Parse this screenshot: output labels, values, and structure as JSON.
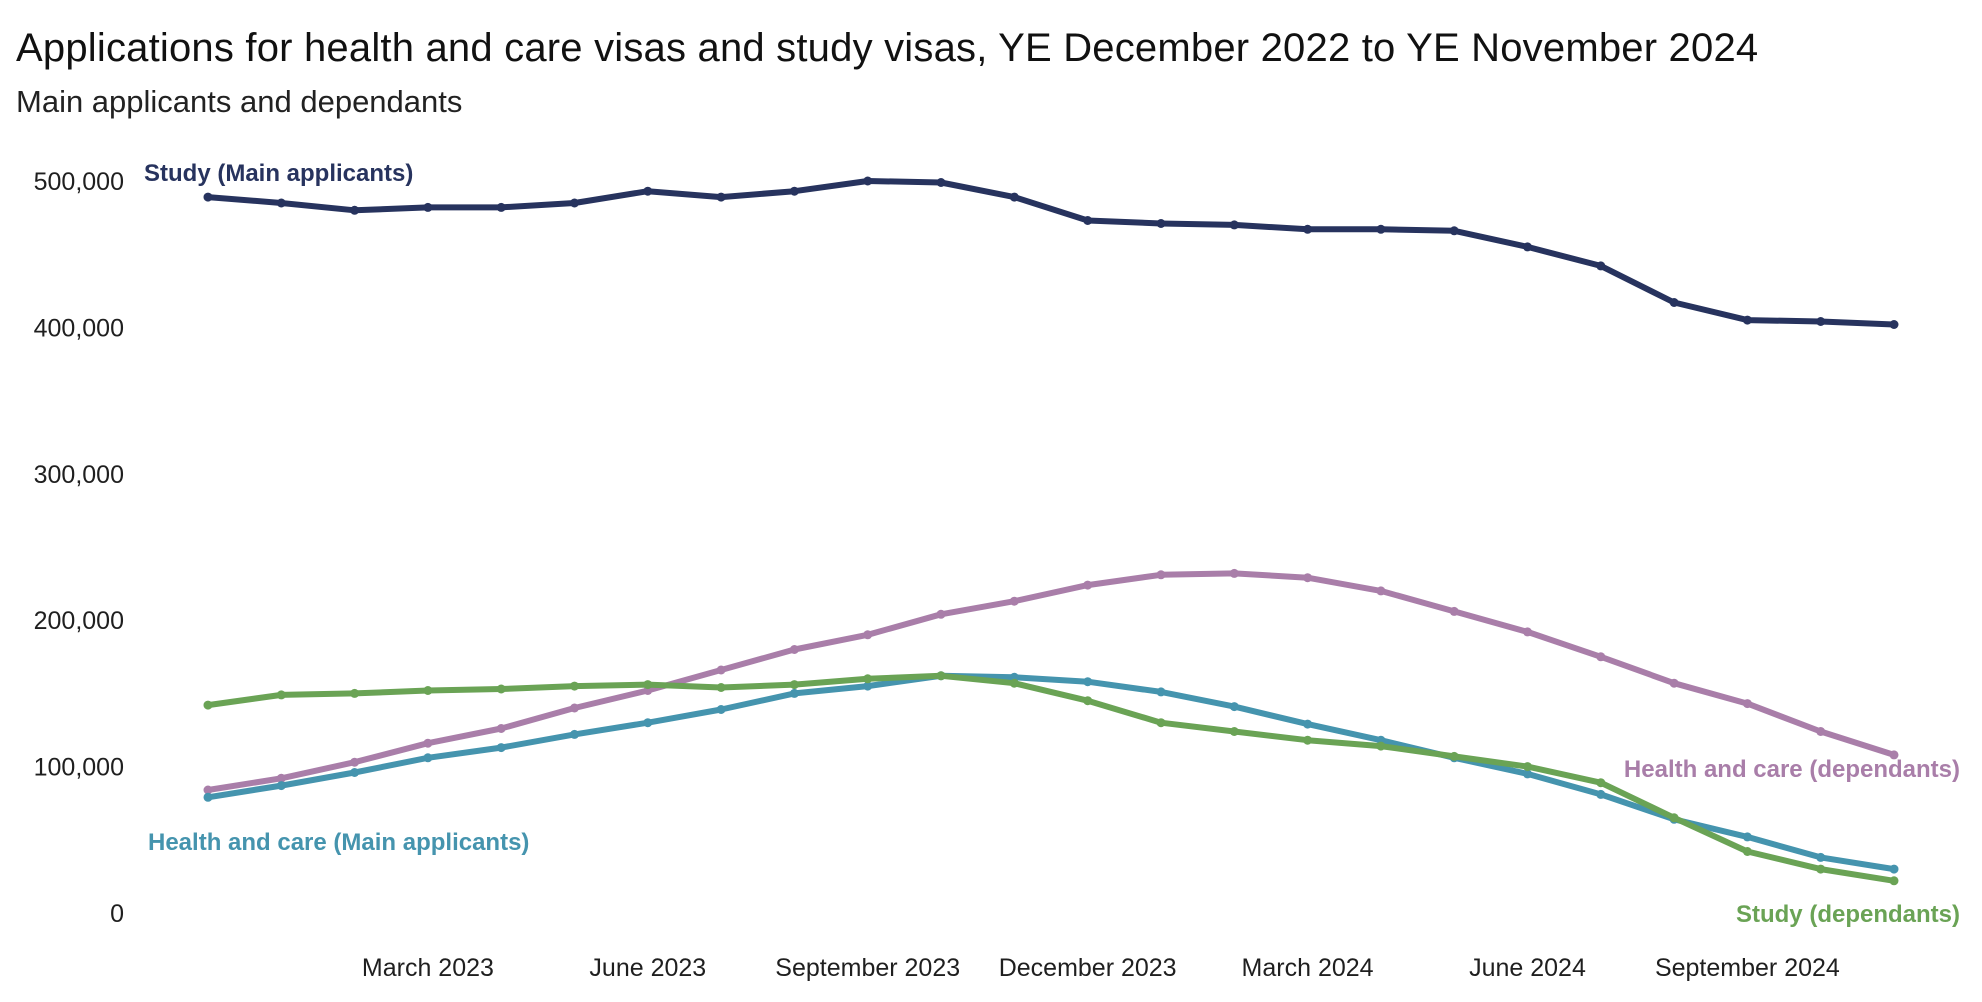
{
  "title": "Applications for health and care visas and study visas, YE December 2022 to YE November 2024",
  "subtitle": "Main applicants and dependants",
  "chart_data": {
    "type": "line",
    "title": "Applications for health and care visas and study visas, YE December 2022 to YE November 2024",
    "subtitle": "Main applicants and dependants",
    "xlabel": "",
    "ylabel": "",
    "ylim": [
      0,
      500000
    ],
    "yticks": [
      0,
      100000,
      200000,
      300000,
      400000,
      500000
    ],
    "ytick_labels": [
      "0",
      "100,000",
      "200,000",
      "300,000",
      "400,000",
      "500,000"
    ],
    "x": [
      "Dec 2022",
      "Jan 2023",
      "Feb 2023",
      "Mar 2023",
      "Apr 2023",
      "May 2023",
      "Jun 2023",
      "Jul 2023",
      "Aug 2023",
      "Sep 2023",
      "Oct 2023",
      "Nov 2023",
      "Dec 2023",
      "Jan 2024",
      "Feb 2024",
      "Mar 2024",
      "Apr 2024",
      "May 2024",
      "Jun 2024",
      "Jul 2024",
      "Aug 2024",
      "Sep 2024",
      "Oct 2024",
      "Nov 2024"
    ],
    "xtick_labels": [
      {
        "index": 3,
        "label": "March 2023"
      },
      {
        "index": 6,
        "label": "June 2023"
      },
      {
        "index": 9,
        "label": "September 2023"
      },
      {
        "index": 12,
        "label": "December 2023"
      },
      {
        "index": 15,
        "label": "March 2024"
      },
      {
        "index": 18,
        "label": "June 2024"
      },
      {
        "index": 21,
        "label": "September 2024"
      }
    ],
    "grid": false,
    "legend": "direct labels",
    "series": [
      {
        "name": "Study (Main applicants)",
        "color": "#27335e",
        "values": [
          489000,
          485000,
          480000,
          482000,
          482000,
          485000,
          493000,
          489000,
          493000,
          500000,
          499000,
          489000,
          473000,
          471000,
          470000,
          467000,
          467000,
          466000,
          455000,
          442000,
          417000,
          405000,
          404000,
          402000
        ]
      },
      {
        "name": "Health and care (dependants)",
        "color": "#a97ea9",
        "values": [
          84000,
          92000,
          103000,
          116000,
          126000,
          140000,
          152000,
          166000,
          180000,
          190000,
          204000,
          213000,
          224000,
          231000,
          232000,
          229000,
          220000,
          206000,
          192000,
          175000,
          157000,
          143000,
          124000,
          108000
        ]
      },
      {
        "name": "Health and care (Main applicants)",
        "color": "#4594ae",
        "values": [
          79000,
          87000,
          96000,
          106000,
          113000,
          122000,
          130000,
          139000,
          150000,
          155000,
          162000,
          161000,
          158000,
          151000,
          141000,
          129000,
          118000,
          106000,
          95000,
          81000,
          64000,
          52000,
          38000,
          30000
        ]
      },
      {
        "name": "Study (dependants)",
        "color": "#6aa355",
        "values": [
          142000,
          149000,
          150000,
          152000,
          153000,
          155000,
          156000,
          154000,
          156000,
          160000,
          162000,
          157000,
          145000,
          130000,
          124000,
          118000,
          114000,
          107000,
          100000,
          89000,
          65000,
          42000,
          30000,
          22000
        ]
      }
    ]
  }
}
